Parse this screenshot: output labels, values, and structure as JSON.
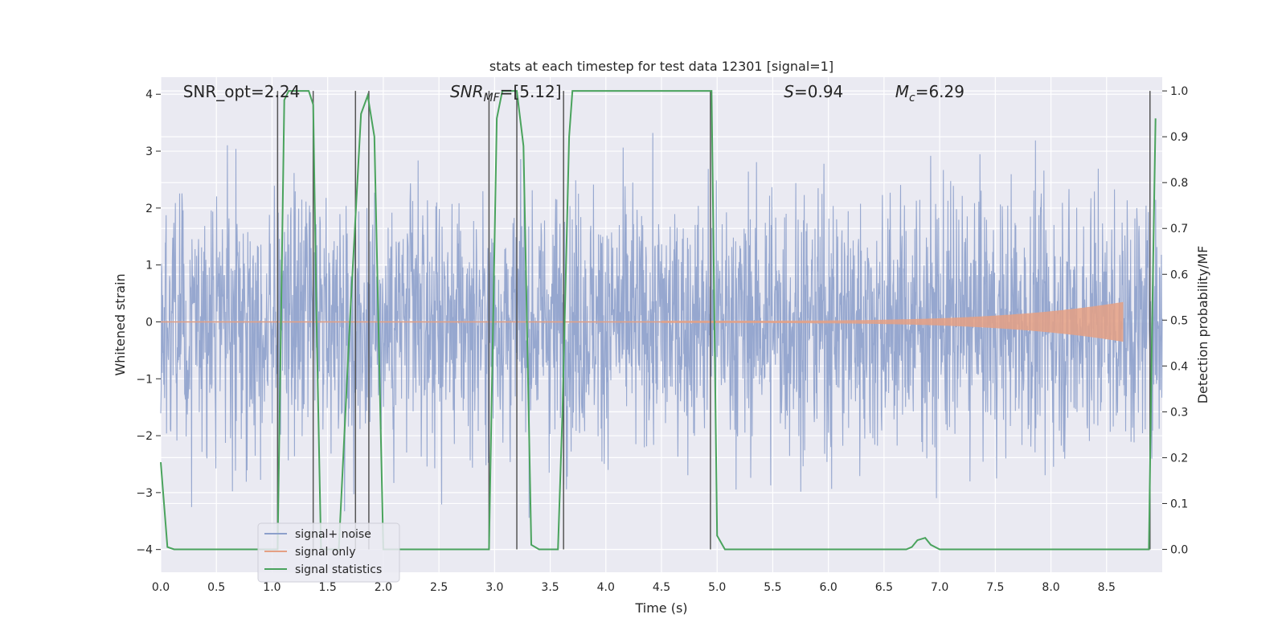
{
  "chart_data": {
    "type": "line",
    "title": "stats at each timestep for test data 12301 [signal=1]",
    "xlabel": "Time (s)",
    "ylabel_left": "Whitened strain",
    "ylabel_right": "Detection probability/MF",
    "xlim": [
      0.0,
      9.0
    ],
    "ylim_left": [
      -4.4,
      4.3
    ],
    "ylim_right": [
      -0.05,
      1.03
    ],
    "x_ticks": [
      0.0,
      0.5,
      1.0,
      1.5,
      2.0,
      2.5,
      3.0,
      3.5,
      4.0,
      4.5,
      5.0,
      5.5,
      6.0,
      6.5,
      7.0,
      7.5,
      8.0,
      8.5
    ],
    "x_tick_labels": [
      "0.0",
      "0.5",
      "1.0",
      "1.5",
      "2.0",
      "2.5",
      "3.0",
      "3.5",
      "4.0",
      "4.5",
      "5.0",
      "5.5",
      "6.0",
      "6.5",
      "7.0",
      "7.5",
      "8.0",
      "8.5"
    ],
    "y_left_ticks": [
      -4,
      -3,
      -2,
      -1,
      0,
      1,
      2,
      3,
      4
    ],
    "y_left_tick_labels": [
      "−4",
      "−3",
      "−2",
      "−1",
      "0",
      "1",
      "2",
      "3",
      "4"
    ],
    "y_right_ticks": [
      0.0,
      0.1,
      0.2,
      0.3,
      0.4,
      0.5,
      0.6,
      0.7,
      0.8,
      0.9,
      1.0
    ],
    "y_right_tick_labels": [
      "0.0",
      "0.1",
      "0.2",
      "0.3",
      "0.4",
      "0.5",
      "0.6",
      "0.7",
      "0.8",
      "0.9",
      "1.0"
    ],
    "grid": true,
    "legend_position": "lower-left",
    "annotations": [
      {
        "text": "SNR_opt=2.24",
        "x": 0.2,
        "y": 4.0
      },
      {
        "text": "SNR",
        "sub": "MF",
        "suffix": "=[5.12]",
        "italic": true,
        "x": 2.6,
        "y": 4.0
      },
      {
        "text": "S",
        "sub": "",
        "suffix": "=0.94",
        "italic": true,
        "x": 5.6,
        "y": 4.0
      },
      {
        "text": "M",
        "sub": "c",
        "suffix": "=6.29",
        "italic": true,
        "x": 6.6,
        "y": 4.0
      }
    ],
    "series": [
      {
        "name": "signal+ noise",
        "axis": "left",
        "color": "#8da0cb",
        "envelope": {
          "t_start": 0.0,
          "t_end": 9.0,
          "typical_abs": 1.6,
          "peak_abs": 3.6
        }
      },
      {
        "name": "signal only",
        "axis": "left",
        "color": "#e5a084",
        "chirp": {
          "t_start": 4.5,
          "t_end": 8.65,
          "amp_start": 0.02,
          "amp_end": 0.35
        }
      },
      {
        "name": "signal statistics",
        "axis": "right",
        "color": "#4aa35d",
        "x": [
          0.0,
          0.06,
          0.12,
          0.9,
          1.05,
          1.11,
          1.15,
          1.33,
          1.37,
          1.4,
          1.44,
          1.6,
          1.7,
          1.8,
          1.86,
          1.92,
          2.0,
          2.1,
          2.95,
          3.02,
          3.07,
          3.2,
          3.26,
          3.33,
          3.4,
          3.57,
          3.61,
          3.67,
          3.7,
          4.95,
          5.0,
          5.07,
          6.7,
          6.75,
          6.8,
          6.87,
          6.92,
          7.0,
          8.88,
          8.91,
          8.94
        ],
        "y": [
          0.19,
          0.005,
          0.0,
          0.0,
          0.0,
          0.98,
          1.0,
          1.0,
          0.97,
          0.5,
          0.0,
          0.0,
          0.5,
          0.95,
          0.99,
          0.9,
          0.0,
          0.0,
          0.0,
          0.94,
          1.0,
          1.0,
          0.88,
          0.01,
          0.0,
          0.0,
          0.3,
          0.9,
          1.0,
          1.0,
          0.03,
          0.0,
          0.0,
          0.005,
          0.02,
          0.025,
          0.01,
          0.0,
          0.0,
          0.5,
          0.94
        ]
      }
    ],
    "vlines": [
      1.05,
      1.37,
      1.75,
      1.87,
      2.95,
      3.2,
      3.62,
      4.94,
      8.89
    ]
  }
}
